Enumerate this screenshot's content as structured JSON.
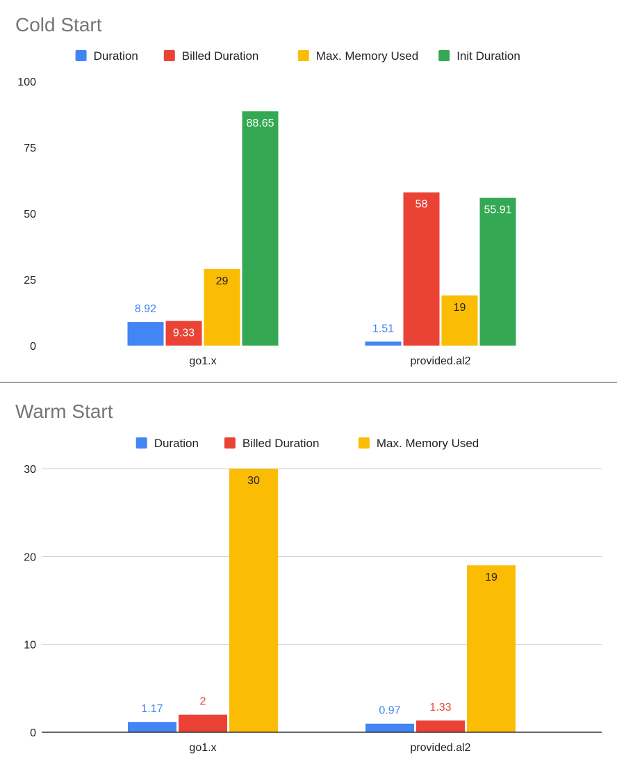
{
  "chart_data": [
    {
      "type": "bar",
      "title": "Cold Start",
      "categories": [
        "go1.x",
        "provided.al2"
      ],
      "series": [
        {
          "name": "Duration",
          "values": [
            8.92,
            1.51
          ],
          "color": "#4285F4"
        },
        {
          "name": "Billed Duration",
          "values": [
            9.33,
            58
          ],
          "color": "#EA4335"
        },
        {
          "name": "Max. Memory Used",
          "values": [
            29,
            19
          ],
          "color": "#FBBC04"
        },
        {
          "name": "Init Duration",
          "values": [
            88.65,
            55.91
          ],
          "color": "#34A853"
        }
      ],
      "ylim": [
        0,
        100
      ],
      "yticks": [
        "0",
        "25",
        "50",
        "75",
        "100"
      ],
      "grid": false,
      "legend": "top-center"
    },
    {
      "type": "bar",
      "title": "Warm Start",
      "categories": [
        "go1.x",
        "provided.al2"
      ],
      "series": [
        {
          "name": "Duration",
          "values": [
            1.17,
            0.97
          ],
          "color": "#4285F4"
        },
        {
          "name": "Billed Duration",
          "values": [
            2,
            1.33
          ],
          "color": "#EA4335"
        },
        {
          "name": "Max. Memory Used",
          "values": [
            30,
            19
          ],
          "color": "#FBBC04"
        }
      ],
      "ylim": [
        0,
        30
      ],
      "yticks": [
        "0",
        "10",
        "20",
        "30"
      ],
      "grid": true,
      "legend": "top-center"
    }
  ]
}
